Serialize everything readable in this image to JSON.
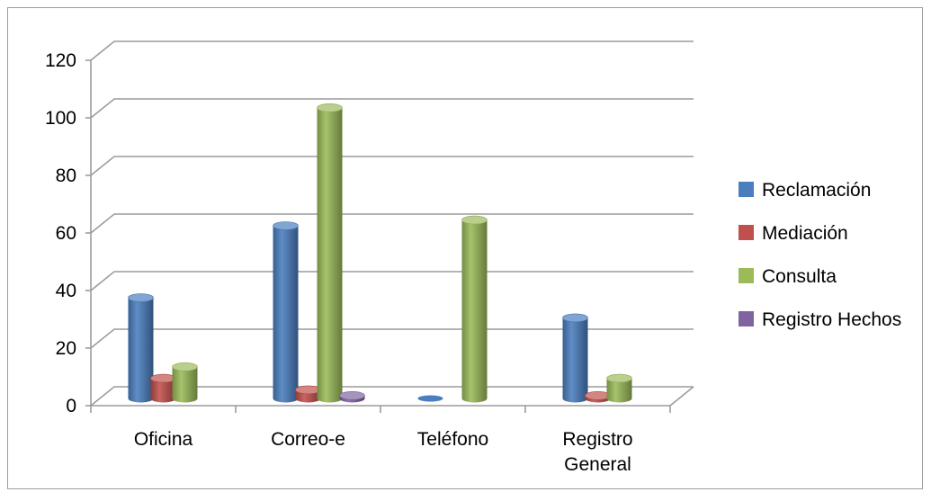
{
  "chart_data": {
    "type": "bar",
    "style": "3d-cylinder",
    "categories": [
      "Oficina",
      "Correo-e",
      "Teléfono",
      "Registro General"
    ],
    "category_lines": [
      [
        "Oficina"
      ],
      [
        "Correo-e"
      ],
      [
        "Teléfono"
      ],
      [
        "Registro",
        "General"
      ]
    ],
    "series": [
      {
        "name": "Reclamación",
        "color": "#4a7ebf",
        "values": [
          35,
          60,
          0,
          28
        ]
      },
      {
        "name": "Mediación",
        "color": "#c0504d",
        "values": [
          7,
          3,
          0,
          1
        ]
      },
      {
        "name": "Consulta",
        "color": "#9bbb59",
        "values": [
          11,
          101,
          62,
          7
        ]
      },
      {
        "name": "Registro Hechos",
        "color": "#8064a2",
        "values": [
          0,
          1,
          0,
          0
        ]
      }
    ],
    "ylim": [
      0,
      120
    ],
    "y_ticks": [
      "0",
      "20",
      "40",
      "60",
      "80",
      "100",
      "120"
    ],
    "grid": true,
    "legend": "right",
    "title": "",
    "xlabel": "",
    "ylabel": ""
  }
}
